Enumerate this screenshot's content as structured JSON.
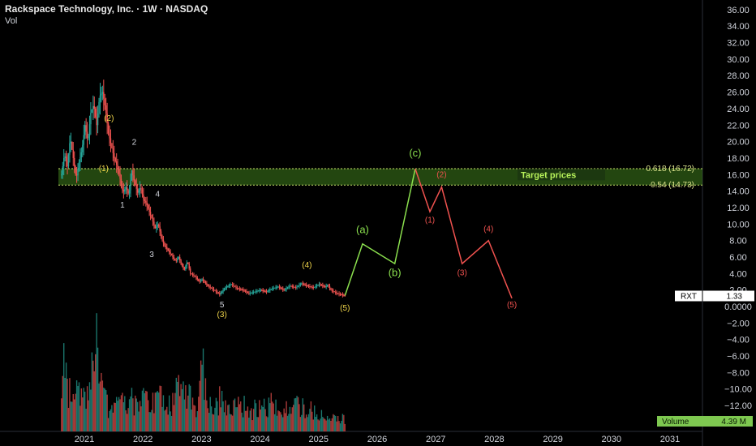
{
  "header": {
    "title": "Rackspace Technology, Inc. · 1W · NASDAQ",
    "vol_label": "Vol"
  },
  "colors": {
    "up": "#26a69a",
    "down": "#ef5350",
    "bullish_wave": "#8be04e",
    "bearish_wave": "#f0524f",
    "target_zone": "#3f7f1e",
    "volume_badge": "#7ec850"
  },
  "chart_data": {
    "type": "candlestick",
    "price_axis": {
      "ticks": [
        "36.00",
        "34.00",
        "32.00",
        "30.00",
        "28.00",
        "26.00",
        "24.00",
        "22.00",
        "20.00",
        "18.00",
        "16.00",
        "14.00",
        "12.00",
        "10.00",
        "8.00",
        "6.00",
        "4.00",
        "2.00",
        "0.0000",
        "−2.00",
        "−4.00",
        "−6.00",
        "−8.00",
        "−10.00",
        "−12.00"
      ]
    },
    "time_axis": {
      "ticks": [
        "2021",
        "2022",
        "2023",
        "2024",
        "2025",
        "2026",
        "2027",
        "2028",
        "2029",
        "2030",
        "2031"
      ]
    },
    "price_path": [
      [
        2020.6,
        16.0
      ],
      [
        2020.65,
        18.5
      ],
      [
        2020.7,
        17.0
      ],
      [
        2020.75,
        20.5
      ],
      [
        2020.8,
        18.0
      ],
      [
        2020.85,
        15.5
      ],
      [
        2020.9,
        17.5
      ],
      [
        2020.95,
        19.0
      ],
      [
        2021.0,
        22.0
      ],
      [
        2021.05,
        20.0
      ],
      [
        2021.1,
        23.5
      ],
      [
        2021.15,
        24.5
      ],
      [
        2021.2,
        22.0
      ],
      [
        2021.25,
        25.5
      ],
      [
        2021.3,
        26.0
      ],
      [
        2021.35,
        24.0
      ],
      [
        2021.4,
        21.0
      ],
      [
        2021.45,
        19.5
      ],
      [
        2021.5,
        18.0
      ],
      [
        2021.55,
        17.0
      ],
      [
        2021.6,
        15.5
      ],
      [
        2021.65,
        13.8
      ],
      [
        2021.7,
        14.5
      ],
      [
        2021.75,
        13.5
      ],
      [
        2021.8,
        16.5
      ],
      [
        2021.85,
        15.0
      ],
      [
        2021.9,
        13.8
      ],
      [
        2021.95,
        14.5
      ],
      [
        2022.0,
        13.0
      ],
      [
        2022.05,
        12.5
      ],
      [
        2022.1,
        11.5
      ],
      [
        2022.15,
        10.5
      ],
      [
        2022.2,
        9.5
      ],
      [
        2022.25,
        10.0
      ],
      [
        2022.3,
        8.5
      ],
      [
        2022.35,
        7.5
      ],
      [
        2022.4,
        7.0
      ],
      [
        2022.45,
        6.5
      ],
      [
        2022.5,
        6.0
      ],
      [
        2022.55,
        5.5
      ],
      [
        2022.6,
        6.0
      ],
      [
        2022.65,
        5.0
      ],
      [
        2022.7,
        4.5
      ],
      [
        2022.75,
        5.5
      ],
      [
        2022.8,
        4.0
      ],
      [
        2022.85,
        3.8
      ],
      [
        2022.9,
        3.5
      ],
      [
        2022.95,
        3.0
      ],
      [
        2023.0,
        3.3
      ],
      [
        2023.1,
        2.5
      ],
      [
        2023.2,
        2.0
      ],
      [
        2023.3,
        1.5
      ],
      [
        2023.4,
        2.3
      ],
      [
        2023.5,
        2.7
      ],
      [
        2023.6,
        2.2
      ],
      [
        2023.7,
        2.0
      ],
      [
        2023.8,
        1.6
      ],
      [
        2023.9,
        1.8
      ],
      [
        2024.0,
        2.0
      ],
      [
        2024.1,
        1.8
      ],
      [
        2024.2,
        2.2
      ],
      [
        2024.3,
        2.4
      ],
      [
        2024.4,
        2.0
      ],
      [
        2024.5,
        2.5
      ],
      [
        2024.6,
        2.3
      ],
      [
        2024.7,
        2.8
      ],
      [
        2024.8,
        2.5
      ],
      [
        2024.9,
        2.3
      ],
      [
        2025.0,
        2.7
      ],
      [
        2025.1,
        2.4
      ],
      [
        2025.15,
        2.6
      ],
      [
        2025.2,
        2.0
      ],
      [
        2025.3,
        1.6
      ],
      [
        2025.4,
        1.4
      ],
      [
        2025.45,
        1.33
      ]
    ],
    "volume_path": [
      [
        2020.6,
        0.3
      ],
      [
        2020.65,
        1.0
      ],
      [
        2020.7,
        0.6
      ],
      [
        2020.8,
        0.4
      ],
      [
        2020.9,
        0.5
      ],
      [
        2021.0,
        0.4
      ],
      [
        2021.1,
        0.6
      ],
      [
        2021.2,
        1.1
      ],
      [
        2021.3,
        0.5
      ],
      [
        2021.4,
        0.3
      ],
      [
        2021.5,
        0.3
      ],
      [
        2021.6,
        0.4
      ],
      [
        2021.7,
        0.3
      ],
      [
        2021.8,
        0.4
      ],
      [
        2021.9,
        0.35
      ],
      [
        2022.0,
        0.5
      ],
      [
        2022.1,
        0.35
      ],
      [
        2022.2,
        0.4
      ],
      [
        2022.3,
        0.5
      ],
      [
        2022.4,
        0.4
      ],
      [
        2022.5,
        0.35
      ],
      [
        2022.6,
        0.75
      ],
      [
        2022.7,
        0.4
      ],
      [
        2022.8,
        0.45
      ],
      [
        2022.9,
        0.3
      ],
      [
        2023.0,
        0.9
      ],
      [
        2023.1,
        0.35
      ],
      [
        2023.2,
        0.3
      ],
      [
        2023.3,
        0.4
      ],
      [
        2023.4,
        0.3
      ],
      [
        2023.5,
        0.35
      ],
      [
        2023.6,
        0.3
      ],
      [
        2023.7,
        0.35
      ],
      [
        2023.8,
        0.25
      ],
      [
        2023.9,
        0.3
      ],
      [
        2024.0,
        0.3
      ],
      [
        2024.2,
        0.35
      ],
      [
        2024.4,
        0.3
      ],
      [
        2024.6,
        0.4
      ],
      [
        2024.8,
        0.3
      ],
      [
        2025.0,
        0.2
      ],
      [
        2025.2,
        0.18
      ],
      [
        2025.45,
        0.15
      ]
    ],
    "target_zone": {
      "low": 14.73,
      "high": 16.72
    },
    "levels": [
      {
        "label": "0.618 (16.72)",
        "value": 16.72
      },
      {
        "label": "0.54 (14.73)",
        "value": 14.73
      }
    ],
    "target_label": "Target prices",
    "projection_bullish": [
      [
        2025.45,
        1.33
      ],
      [
        2025.75,
        7.6
      ],
      [
        2026.3,
        5.2
      ],
      [
        2026.65,
        16.7
      ]
    ],
    "projection_bearish": [
      [
        2026.65,
        16.7
      ],
      [
        2026.9,
        11.5
      ],
      [
        2027.1,
        14.5
      ],
      [
        2027.45,
        5.2
      ],
      [
        2027.9,
        8.0
      ],
      [
        2028.3,
        1.0
      ]
    ],
    "wave_labels": [
      {
        "text": "(2)",
        "x": 2021.42,
        "y": 22.5,
        "color": "#f0d54a",
        "size": 10
      },
      {
        "text": "(1)",
        "x": 2021.33,
        "y": 16.4,
        "color": "#f0d54a",
        "size": 10
      },
      {
        "text": "2",
        "x": 2021.85,
        "y": 19.6,
        "color": "#d1d4dc",
        "size": 10
      },
      {
        "text": "1",
        "x": 2021.65,
        "y": 12.0,
        "color": "#d1d4dc",
        "size": 10
      },
      {
        "text": "4",
        "x": 2022.25,
        "y": 13.3,
        "color": "#d1d4dc",
        "size": 10
      },
      {
        "text": "3",
        "x": 2022.15,
        "y": 6.0,
        "color": "#d1d4dc",
        "size": 10
      },
      {
        "text": "5",
        "x": 2023.35,
        "y": -0.1,
        "color": "#d1d4dc",
        "size": 10
      },
      {
        "text": "(3)",
        "x": 2023.35,
        "y": -1.3,
        "color": "#f0d54a",
        "size": 10
      },
      {
        "text": "(4)",
        "x": 2024.8,
        "y": 4.7,
        "color": "#f0d54a",
        "size": 10
      },
      {
        "text": "(5)",
        "x": 2025.45,
        "y": -0.5,
        "color": "#f0d54a",
        "size": 10
      },
      {
        "text": "(a)",
        "x": 2025.75,
        "y": 8.9,
        "color": "#8be04e",
        "size": 13
      },
      {
        "text": "(b)",
        "x": 2026.3,
        "y": 3.7,
        "color": "#8be04e",
        "size": 13
      },
      {
        "text": "(c)",
        "x": 2026.65,
        "y": 18.2,
        "color": "#8be04e",
        "size": 13
      },
      {
        "text": "(2)",
        "x": 2027.1,
        "y": 15.7,
        "color": "#f0524f",
        "size": 10
      },
      {
        "text": "(1)",
        "x": 2026.9,
        "y": 10.2,
        "color": "#f0524f",
        "size": 10
      },
      {
        "text": "(3)",
        "x": 2027.45,
        "y": 3.8,
        "color": "#f0524f",
        "size": 10
      },
      {
        "text": "(4)",
        "x": 2027.9,
        "y": 9.1,
        "color": "#f0524f",
        "size": 10
      },
      {
        "text": "(5)",
        "x": 2028.3,
        "y": -0.1,
        "color": "#f0524f",
        "size": 10
      }
    ],
    "last_price": {
      "symbol": "RXT",
      "value": "1.33"
    },
    "volume": {
      "label": "Volume",
      "value": "4.39 M"
    }
  }
}
